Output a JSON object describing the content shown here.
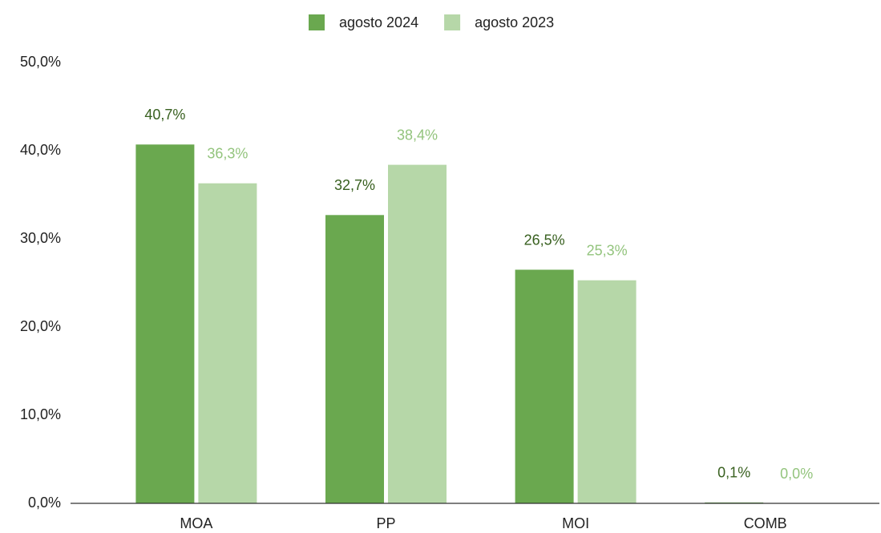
{
  "chart_data": {
    "type": "bar",
    "categories": [
      "MOA",
      "PP",
      "MOI",
      "COMB"
    ],
    "series": [
      {
        "name": "agosto 2024",
        "color": "#6aa84f",
        "label_color": "#38601f",
        "values": [
          40.7,
          32.7,
          26.5,
          0.1
        ],
        "value_labels": [
          "40,7%",
          "32,7%",
          "26,5%",
          "0,1%"
        ]
      },
      {
        "name": "agosto 2023",
        "color": "#b6d7a8",
        "label_color": "#93c47d",
        "values": [
          36.3,
          38.4,
          25.3,
          0.0
        ],
        "value_labels": [
          "36,3%",
          "38,4%",
          "25,3%",
          "0,0%"
        ]
      }
    ],
    "ylim": [
      0,
      50
    ],
    "yticks": [
      {
        "value": 0,
        "label": "0,0%"
      },
      {
        "value": 10,
        "label": "10,0%"
      },
      {
        "value": 20,
        "label": "20,0%"
      },
      {
        "value": 30,
        "label": "30,0%"
      },
      {
        "value": 40,
        "label": "40,0%"
      },
      {
        "value": 50,
        "label": "50,0%"
      }
    ],
    "grid": false,
    "legend": "top"
  }
}
